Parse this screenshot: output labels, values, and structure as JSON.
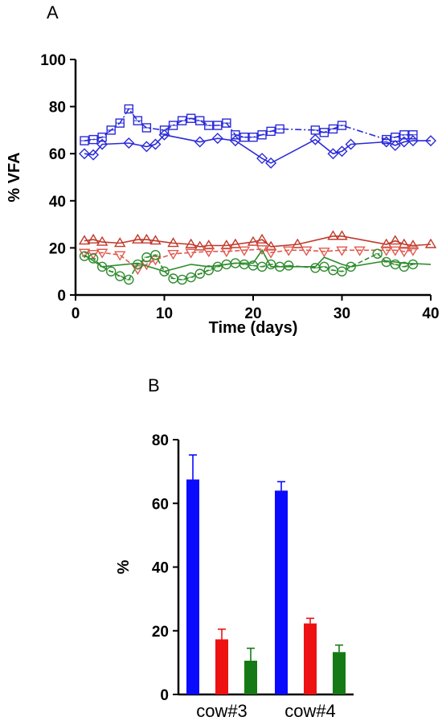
{
  "panels": {
    "a_label": "A",
    "b_label": "B"
  },
  "chart_data": [
    {
      "type": "line",
      "xlabel": "Time (days)",
      "ylabel": "% VFA",
      "xlim": [
        0,
        40
      ],
      "ylim": [
        0,
        100
      ],
      "x_ticks": [
        0,
        10,
        20,
        30,
        40
      ],
      "y_ticks": [
        0,
        20,
        40,
        60,
        80,
        100
      ],
      "grid": false,
      "series": [
        {
          "color": "#2a2ad8",
          "marker": "square",
          "line": "dashdot",
          "x": [
            1,
            2,
            3,
            4,
            5,
            6,
            7,
            8,
            10,
            11,
            12,
            13,
            14,
            15,
            16,
            17,
            18,
            19,
            20,
            21,
            22,
            23,
            27,
            28,
            29,
            30,
            35,
            36,
            37,
            38
          ],
          "y": [
            65.5,
            66,
            67,
            70,
            73,
            79,
            74,
            71,
            70,
            72,
            74,
            75,
            74,
            72,
            72,
            73,
            68,
            67,
            67,
            68,
            69.5,
            70.5,
            70,
            69,
            70.5,
            72,
            66,
            67,
            68,
            68
          ]
        },
        {
          "color": "#2a2ad8",
          "marker": "diamond",
          "line": "solid",
          "x": [
            1,
            2,
            3,
            6,
            8,
            9,
            10,
            14,
            16,
            18,
            21,
            22,
            27,
            29,
            30,
            31,
            35,
            36,
            37,
            38,
            40
          ],
          "y": [
            60,
            59.5,
            64,
            64.5,
            63,
            64,
            68,
            65,
            66.5,
            65.5,
            58,
            56,
            66,
            60,
            61,
            64,
            65,
            63.5,
            65,
            65.5,
            65.5
          ]
        },
        {
          "color": "#c0392b",
          "marker": "triangle-up",
          "line": "solid",
          "x": [
            1,
            2,
            3,
            5,
            7,
            8,
            9,
            11,
            13,
            14,
            15,
            17,
            18,
            20,
            21,
            22,
            25,
            29,
            30,
            35,
            36,
            37,
            38,
            40
          ],
          "y": [
            23,
            23.5,
            22.5,
            22,
            23.5,
            23.5,
            23,
            22,
            21.5,
            20.5,
            21,
            21,
            21.5,
            22.5,
            23.5,
            20.5,
            21.5,
            25,
            25,
            21.5,
            23,
            21.5,
            21,
            21.5
          ]
        },
        {
          "color": "#e05a4f",
          "marker": "triangle-down",
          "line": "dashed",
          "x": [
            1,
            2,
            3,
            5,
            7,
            8,
            9,
            11,
            13,
            15,
            17,
            19,
            21,
            22,
            24,
            26,
            28,
            30,
            32,
            35,
            36,
            37,
            38
          ],
          "y": [
            18,
            17.5,
            18,
            17,
            11,
            13,
            15,
            17.5,
            18,
            18.5,
            18.5,
            19,
            19.5,
            18,
            19,
            19,
            18.5,
            19,
            19,
            19,
            19,
            18.5,
            19
          ]
        },
        {
          "color": "#2e8b2e",
          "marker": "circle",
          "line": "dashed",
          "x": [
            1,
            2,
            3,
            4,
            5,
            6,
            7,
            8,
            9,
            10,
            11,
            12,
            13,
            14,
            15,
            16,
            17,
            18,
            19,
            20,
            21,
            22,
            23,
            24,
            27,
            28,
            29,
            30,
            31,
            34,
            35,
            36,
            37,
            38
          ],
          "y": [
            16.5,
            15.5,
            12,
            10,
            8,
            6.5,
            13,
            16,
            17,
            10,
            7,
            6.5,
            7.5,
            9,
            10.5,
            12,
            13,
            13.5,
            13,
            12.5,
            12,
            13,
            12,
            12.5,
            11.5,
            12,
            10.5,
            10,
            12,
            17.5,
            14,
            13,
            12,
            13
          ]
        },
        {
          "color": "#2e8b2e",
          "marker": "none",
          "line": "solid",
          "x": [
            1,
            3,
            7,
            10,
            13,
            15,
            18,
            20,
            21,
            22,
            27,
            28,
            30,
            31,
            35,
            37,
            40
          ],
          "y": [
            17,
            12,
            13.5,
            10,
            13,
            12,
            13.5,
            13.5,
            19,
            12,
            12,
            16,
            13,
            12,
            14.5,
            13.5,
            13
          ]
        }
      ]
    },
    {
      "type": "bar",
      "categories": [
        "cow#3",
        "cow#4"
      ],
      "ylabel": "%",
      "xlabel": "",
      "ylim": [
        0,
        80
      ],
      "y_ticks": [
        0,
        20,
        40,
        60,
        80
      ],
      "grid": false,
      "series": [
        {
          "color": "#0a0aff",
          "values": [
            67.5,
            64.0
          ],
          "errors": [
            7.7,
            2.8
          ]
        },
        {
          "color": "#ee1111",
          "values": [
            17.3,
            22.3
          ],
          "errors": [
            3.2,
            1.6
          ]
        },
        {
          "color": "#157a15",
          "values": [
            10.6,
            13.3
          ],
          "errors": [
            3.9,
            2.2
          ]
        }
      ]
    }
  ]
}
